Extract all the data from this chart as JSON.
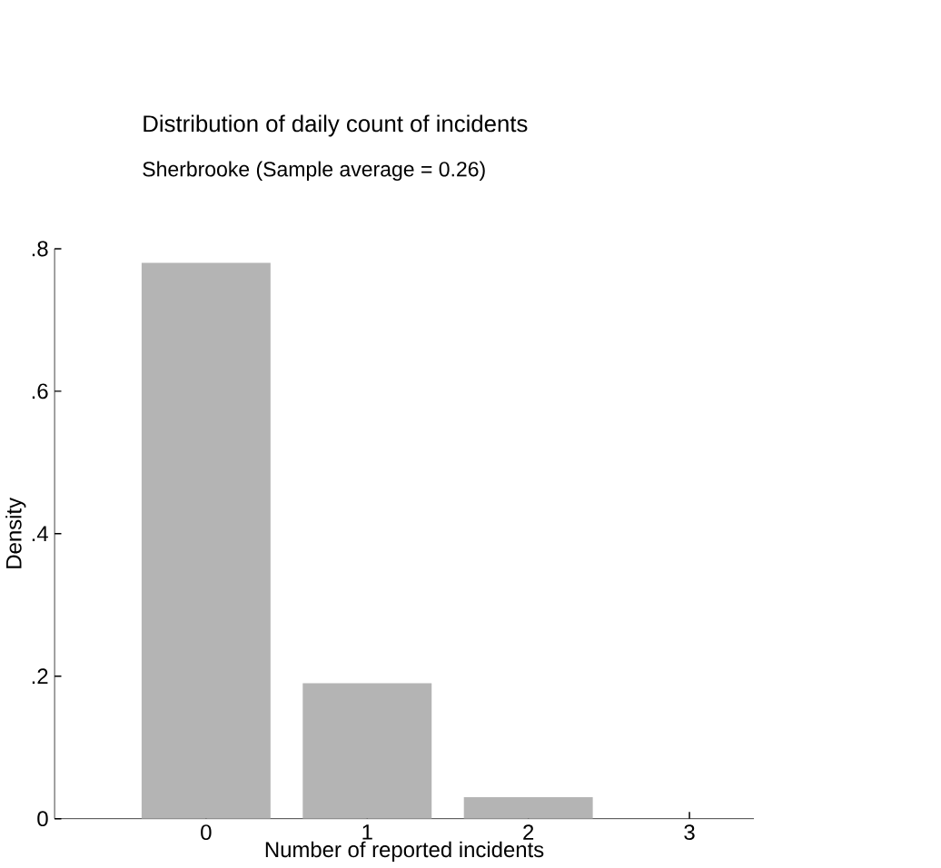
{
  "chart_data": {
    "type": "bar",
    "title": "Distribution of daily count of incidents",
    "subtitle": "Sherbrooke      (Sample average = 0.26)",
    "xlabel": "Number of reported incidents",
    "ylabel": "Density",
    "x": [
      0,
      1,
      2,
      3
    ],
    "values": [
      0.78,
      0.19,
      0.03,
      0
    ],
    "color": "#b4b4b4",
    "xlim": [
      -0.94,
      3.4
    ],
    "ylim": [
      0,
      0.8
    ],
    "xticks": [
      0,
      1,
      2,
      3
    ],
    "yticks": [
      0,
      {
        "value": 0.2,
        "label": ".2"
      },
      {
        "value": 0.4,
        "label": ".4"
      },
      {
        "value": 0.6,
        "label": ".6"
      },
      {
        "value": 0.8,
        "label": ".8"
      }
    ]
  }
}
